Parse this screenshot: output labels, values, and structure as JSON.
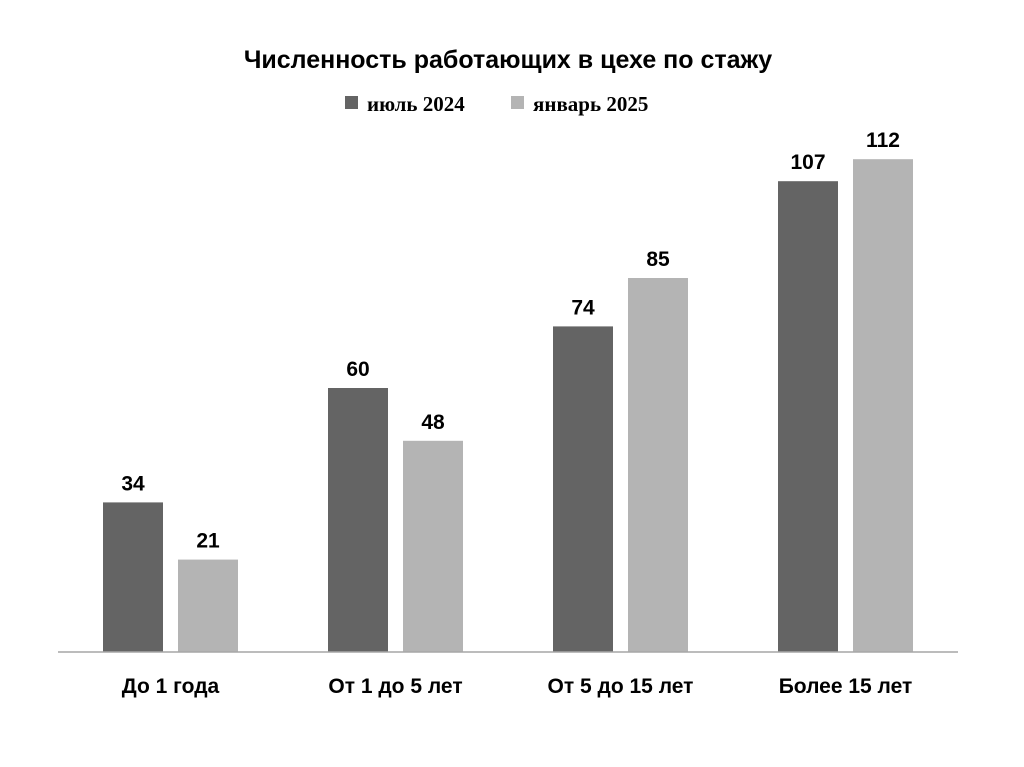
{
  "chart_data": {
    "type": "bar",
    "title": "Численность работающих в цехе по стажу",
    "categories": [
      "До 1 года",
      "От 1 до 5 лет",
      "От 5 до 15 лет",
      "Более 15 лет"
    ],
    "series": [
      {
        "name": "июль 2024",
        "values": [
          34,
          60,
          74,
          107
        ],
        "color": "#646464"
      },
      {
        "name": "январь 2025",
        "values": [
          21,
          48,
          85,
          112
        ],
        "color": "#b4b4b4"
      }
    ],
    "xlabel": "",
    "ylabel": "",
    "ylim": [
      0,
      112
    ],
    "grid": false,
    "legend_position": "top",
    "data_labels": true
  }
}
